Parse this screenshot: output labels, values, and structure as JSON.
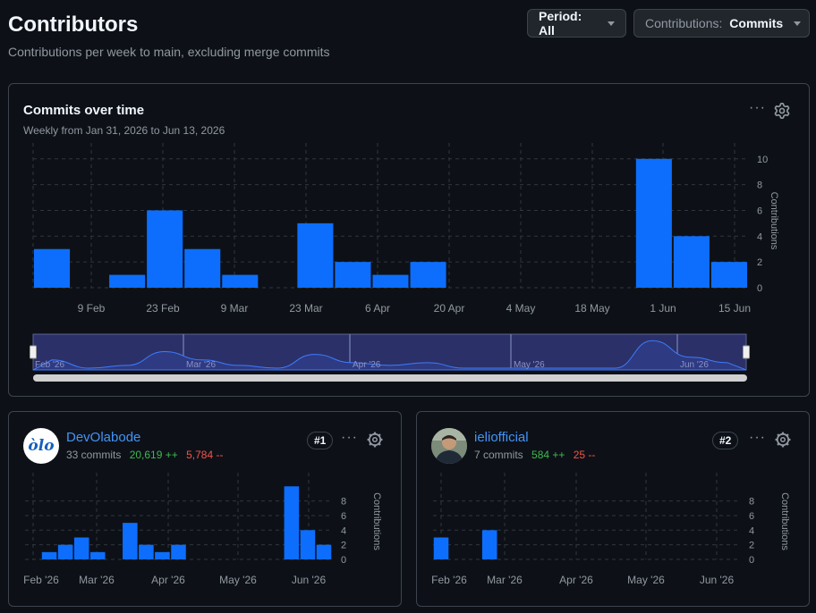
{
  "header": {
    "title": "Contributors",
    "subtitle": "Contributions per week to main, excluding merge commits"
  },
  "controls": {
    "period_label": "Period: All",
    "contrib_prefix": "Contributions: ",
    "contrib_value": "Commits"
  },
  "main_chart": {
    "title": "Commits over time",
    "subtitle": "Weekly from Jan 31, 2026 to Jun 13, 2026",
    "ylabel": "Contributions",
    "x_ticks": [
      "9 Feb",
      "23 Feb",
      "9 Mar",
      "23 Mar",
      "6 Apr",
      "20 Apr",
      "4 May",
      "18 May",
      "1 Jun",
      "15 Jun"
    ],
    "y_ticks": [
      "0",
      "2",
      "4",
      "6",
      "8",
      "10"
    ],
    "navigator_labels": [
      "Feb '26",
      "Mar '26",
      "Apr '26",
      "May '26",
      "Jun '26"
    ]
  },
  "contributors": [
    {
      "name": "DevOlabode",
      "commits": "33 commits",
      "additions": "20,619 ++",
      "deletions": "5,784 --",
      "rank": "#1",
      "avatar_text": "ὸlo"
    },
    {
      "name": "ieliofficial",
      "commits": "7 commits",
      "additions": "584 ++",
      "deletions": "25 --",
      "rank": "#2"
    }
  ],
  "small_chart": {
    "ylabel": "Contributions",
    "x_ticks": [
      "Feb '26",
      "Mar '26",
      "Apr '26",
      "May '26",
      "Jun '26"
    ],
    "y_ticks": [
      "0",
      "2",
      "4",
      "6",
      "8"
    ]
  },
  "colors": {
    "bar": "#0d6efd",
    "accent": "#4493f8",
    "add": "#3fb950",
    "del": "#f85149"
  },
  "chart_data": [
    {
      "type": "bar",
      "title": "Commits over time",
      "ylabel": "Contributions",
      "weeks": [
        "2026-01-31",
        "2026-02-07",
        "2026-02-14",
        "2026-02-21",
        "2026-02-28",
        "2026-03-07",
        "2026-03-14",
        "2026-03-21",
        "2026-03-28",
        "2026-04-04",
        "2026-04-11",
        "2026-04-18",
        "2026-04-25",
        "2026-05-02",
        "2026-05-09",
        "2026-05-16",
        "2026-05-23",
        "2026-05-30",
        "2026-06-06"
      ],
      "values": [
        3,
        0,
        1,
        6,
        3,
        1,
        0,
        5,
        2,
        1,
        2,
        0,
        0,
        0,
        0,
        0,
        10,
        4,
        2
      ],
      "ylim": [
        0,
        11
      ]
    },
    {
      "type": "bar",
      "ylabel": "Contributions",
      "values": [
        0,
        1,
        2,
        3,
        1,
        0,
        5,
        2,
        1,
        2,
        0,
        0,
        0,
        0,
        0,
        0,
        10,
        4,
        2
      ],
      "ylim": [
        0,
        10
      ]
    },
    {
      "type": "bar",
      "ylabel": "Contributions",
      "values": [
        3,
        0,
        0,
        4,
        0,
        0,
        0,
        0,
        0,
        0,
        0,
        0,
        0,
        0,
        0,
        0,
        0,
        0,
        0
      ],
      "ylim": [
        0,
        10
      ]
    }
  ]
}
